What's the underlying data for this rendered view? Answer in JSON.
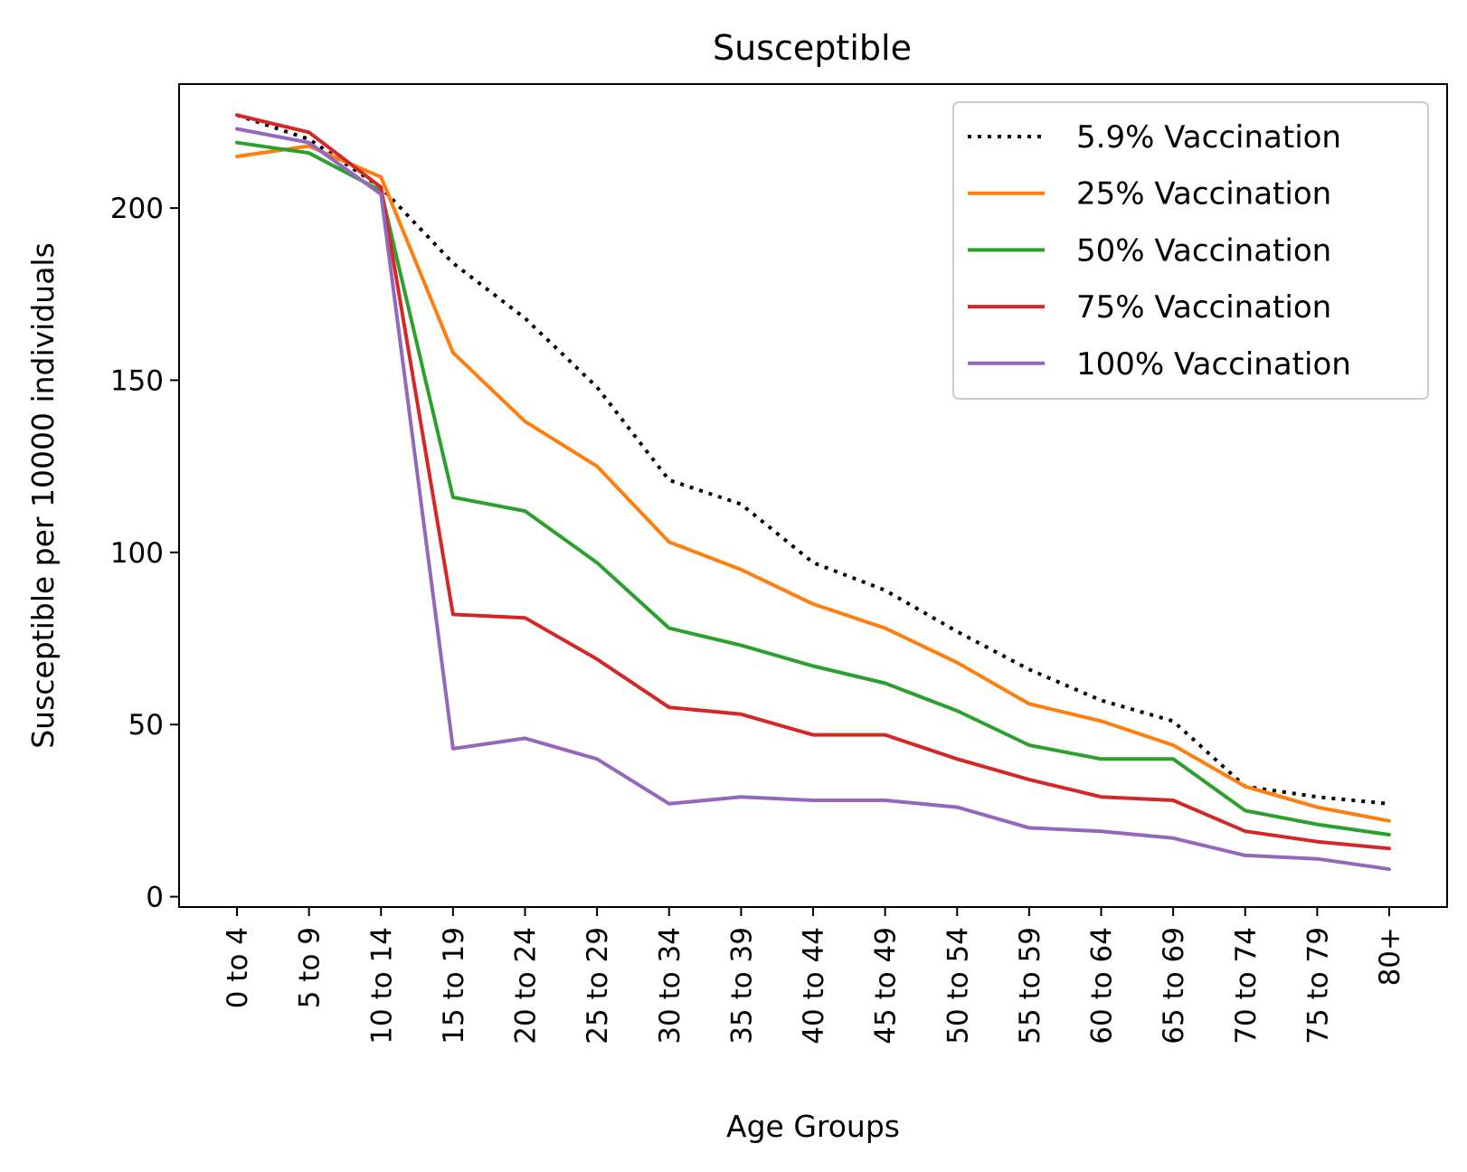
{
  "chart_data": {
    "type": "line",
    "title": "Susceptible",
    "xlabel": "Age Groups",
    "ylabel": "Susceptible per 10000 individuals",
    "categories": [
      "0 to 4",
      "5 to 9",
      "10 to 14",
      "15 to 19",
      "20 to 24",
      "25 to 29",
      "30 to 34",
      "35 to 39",
      "40 to 44",
      "45 to 49",
      "50 to 54",
      "55 to 59",
      "60 to 64",
      "65 to 69",
      "70 to 74",
      "75 to 79",
      "80+"
    ],
    "ylim": [
      -3,
      236
    ],
    "yticks": [
      0,
      50,
      100,
      150,
      200
    ],
    "grid": false,
    "legend_position": "top-right",
    "series": [
      {
        "name": "5.9% Vaccination",
        "color": "#000000",
        "style": "dotted",
        "values": [
          227,
          220,
          206,
          184,
          168,
          148,
          121,
          114,
          97,
          89,
          77,
          66,
          57,
          51,
          32,
          29,
          27
        ]
      },
      {
        "name": "25% Vaccination",
        "color": "#ff7f0e",
        "style": "solid",
        "values": [
          215,
          218,
          209,
          158,
          138,
          125,
          103,
          95,
          85,
          78,
          68,
          56,
          51,
          44,
          32,
          26,
          22
        ]
      },
      {
        "name": "50% Vaccination",
        "color": "#2ca02c",
        "style": "solid",
        "values": [
          219,
          216,
          205,
          116,
          112,
          97,
          78,
          73,
          67,
          62,
          54,
          44,
          40,
          40,
          25,
          21,
          18
        ]
      },
      {
        "name": "75% Vaccination",
        "color": "#d62728",
        "style": "solid",
        "values": [
          227,
          222,
          206,
          82,
          81,
          69,
          55,
          53,
          47,
          47,
          40,
          34,
          29,
          28,
          19,
          16,
          14
        ]
      },
      {
        "name": "100% Vaccination",
        "color": "#9467bd",
        "style": "solid",
        "values": [
          223,
          219,
          204,
          43,
          46,
          40,
          27,
          29,
          28,
          28,
          26,
          20,
          19,
          17,
          12,
          11,
          8
        ]
      }
    ]
  }
}
